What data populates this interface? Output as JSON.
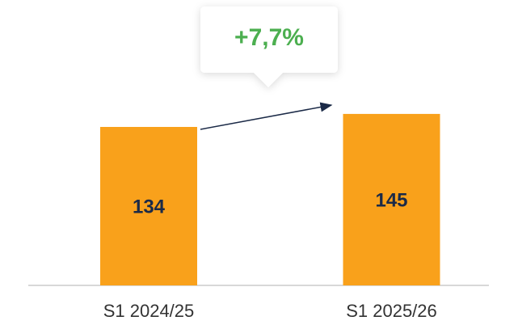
{
  "chart_data": {
    "type": "bar",
    "annotation": "+7,7%",
    "categories": [
      "S1 2024/25",
      "S1 2025/26"
    ],
    "values": [
      134,
      145
    ],
    "color": "#f9a11b",
    "ylim": [
      0,
      150
    ]
  }
}
